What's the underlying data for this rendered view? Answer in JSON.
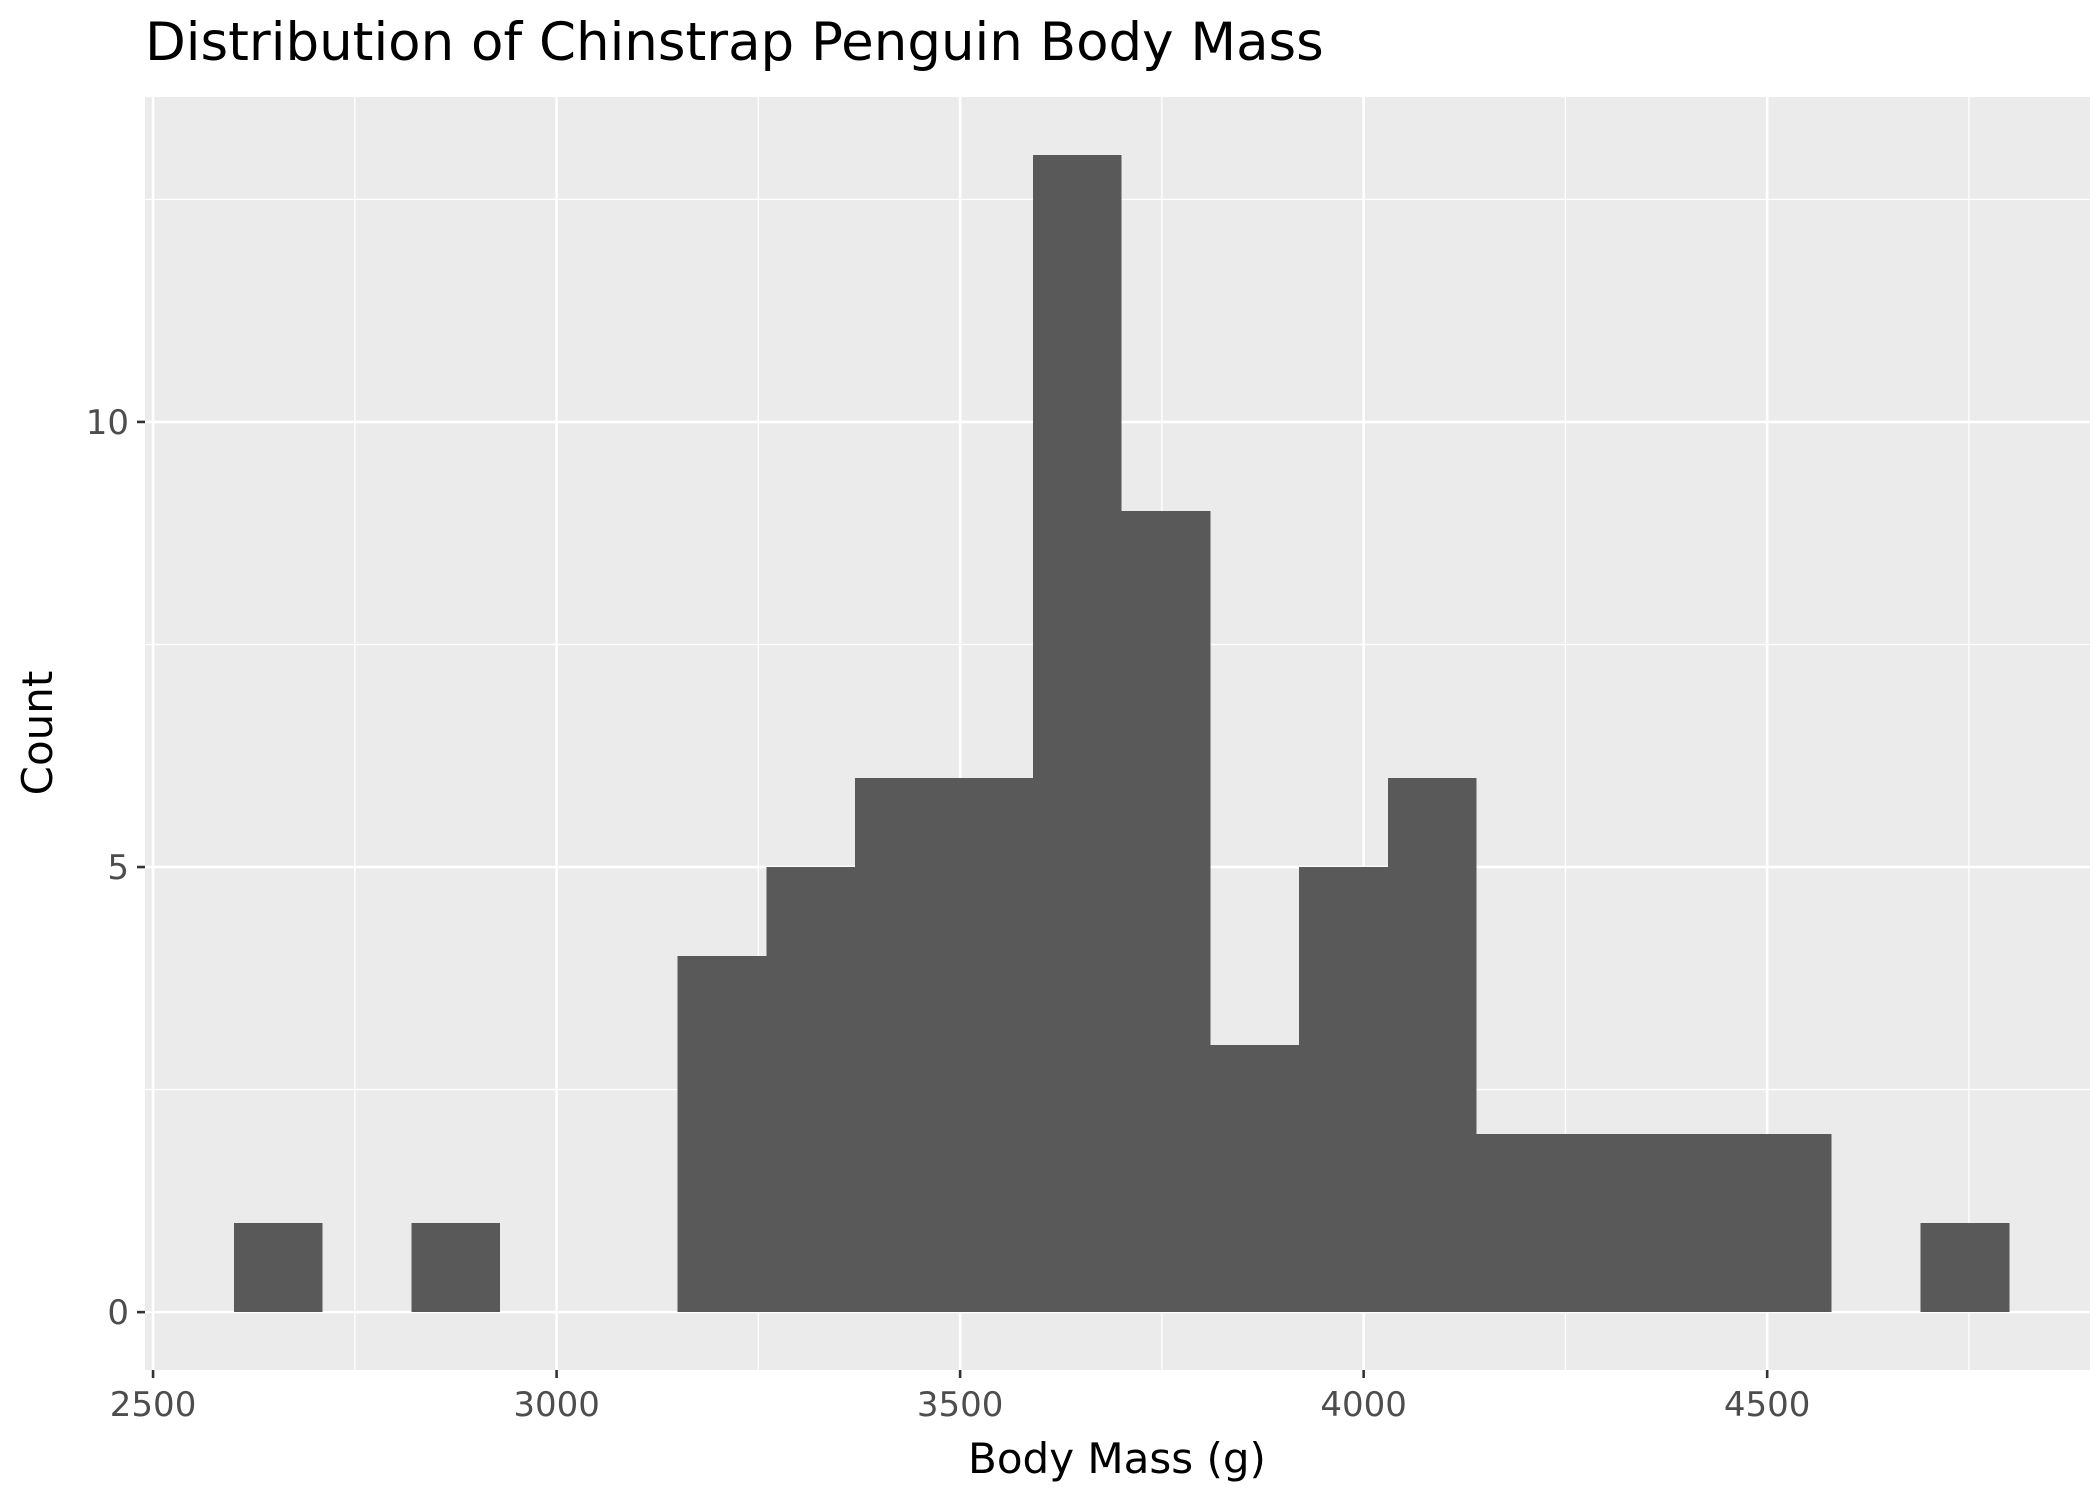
{
  "colors": {
    "panel_background": "#ebebeb",
    "grid": "#ffffff",
    "bar_fill": "#595959",
    "tick": "#333333",
    "tick_label": "#4d4d4d",
    "text": "#000000"
  },
  "chart_data": {
    "type": "bar",
    "subtype": "histogram",
    "title": "Distribution of Chinstrap Penguin Body Mass",
    "xlabel": "Body Mass (g)",
    "ylabel": "Count",
    "xlim": [
      2490,
      4900
    ],
    "ylim": [
      -0.65,
      13.65
    ],
    "x_ticks": [
      2500,
      3000,
      3500,
      4000,
      4500
    ],
    "x_tick_labels": [
      "2500",
      "3000",
      "3500",
      "4000",
      "4500"
    ],
    "x_minor_gridlines": [
      2750,
      3250,
      3750,
      4250,
      4750
    ],
    "y_ticks": [
      0,
      5,
      10
    ],
    "y_tick_labels": [
      "0",
      "5",
      "10"
    ],
    "y_minor_gridlines": [
      2.5,
      7.5,
      12.5
    ],
    "grid": true,
    "legend": "none",
    "bins": [
      {
        "x_start": 2600,
        "x_end": 2710,
        "count": 1
      },
      {
        "x_start": 2710,
        "x_end": 2820,
        "count": 0
      },
      {
        "x_start": 2820,
        "x_end": 2930,
        "count": 1
      },
      {
        "x_start": 2930,
        "x_end": 3040,
        "count": 0
      },
      {
        "x_start": 3040,
        "x_end": 3150,
        "count": 0
      },
      {
        "x_start": 3150,
        "x_end": 3260,
        "count": 4
      },
      {
        "x_start": 3260,
        "x_end": 3370,
        "count": 5
      },
      {
        "x_start": 3370,
        "x_end": 3480,
        "count": 6
      },
      {
        "x_start": 3480,
        "x_end": 3590,
        "count": 6
      },
      {
        "x_start": 3590,
        "x_end": 3700,
        "count": 13
      },
      {
        "x_start": 3700,
        "x_end": 3810,
        "count": 9
      },
      {
        "x_start": 3810,
        "x_end": 3920,
        "count": 3
      },
      {
        "x_start": 3920,
        "x_end": 4030,
        "count": 5
      },
      {
        "x_start": 4030,
        "x_end": 4140,
        "count": 6
      },
      {
        "x_start": 4140,
        "x_end": 4250,
        "count": 2
      },
      {
        "x_start": 4250,
        "x_end": 4360,
        "count": 2
      },
      {
        "x_start": 4360,
        "x_end": 4470,
        "count": 2
      },
      {
        "x_start": 4470,
        "x_end": 4580,
        "count": 2
      },
      {
        "x_start": 4580,
        "x_end": 4690,
        "count": 0
      },
      {
        "x_start": 4690,
        "x_end": 4800,
        "count": 1
      }
    ]
  }
}
